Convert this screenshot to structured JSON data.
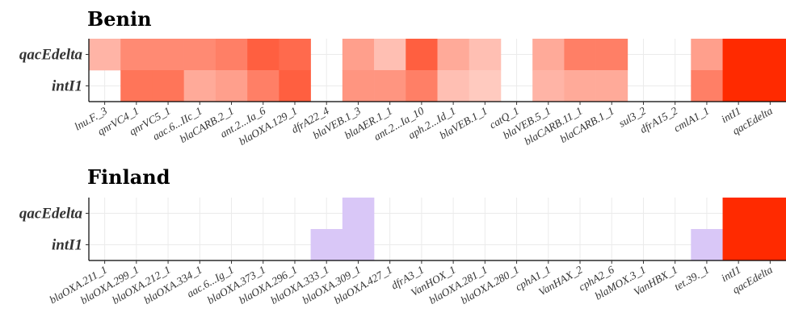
{
  "chart_data": [
    {
      "type": "heatmap",
      "title": "Benin",
      "rows": [
        "qacEdelta",
        "intI1"
      ],
      "columns": [
        "lnu.F._3",
        "qnrVC4_1",
        "qnrVC5_1",
        "aac.6...IIc_1",
        "blaCARB.2_1",
        "ant.2...Ia_6",
        "blaOXA.129_1",
        "dfrA22_4",
        "blaVEB.1_3",
        "blaAER.1_1",
        "ant.2...Ia_10",
        "aph.2...Id_1",
        "blaVEB.1_1",
        "catQ_1",
        "blaVEB.5_1",
        "blaCARB.11_1",
        "blaCARB.1_1",
        "sul3_2",
        "dfrA15_2",
        "cmlA1_1",
        "intI1",
        "qacEdelta"
      ],
      "values": [
        [
          0.35,
          0.55,
          0.55,
          0.55,
          0.6,
          0.75,
          0.7,
          null,
          0.45,
          0.3,
          0.75,
          0.4,
          0.3,
          null,
          0.4,
          0.6,
          0.6,
          null,
          null,
          0.45,
          1.0,
          1.0
        ],
        [
          null,
          0.65,
          0.65,
          0.4,
          0.45,
          0.6,
          0.75,
          null,
          0.5,
          0.5,
          0.6,
          0.3,
          0.25,
          null,
          0.35,
          0.4,
          0.4,
          null,
          null,
          0.6,
          1.0,
          1.0
        ]
      ],
      "color_low": "#ffffff",
      "color_high": "#ff2a00"
    },
    {
      "type": "heatmap",
      "title": "Finland",
      "rows": [
        "qacEdelta",
        "intI1"
      ],
      "columns": [
        "blaOXA.211_1",
        "blaOXA.299_1",
        "blaOXA.212_1",
        "blaOXA.334_1",
        "aac.6...Ig_1",
        "blaOXA.373_1",
        "blaOXA.296_1",
        "blaOXA.333_1",
        "blaOXA.309_1",
        "blaOXA.427_1",
        "dfrA3_1",
        "VanHOX_1",
        "blaOXA.281_1",
        "blaOXA.280_1",
        "cphA1_1",
        "VanHAX_2",
        "cphA2_6",
        "blaMOX.3_1",
        "VanHBX_1",
        "tet.39._1",
        "intI1",
        "qacEdelta"
      ],
      "values": [
        [
          null,
          null,
          null,
          null,
          null,
          null,
          null,
          null,
          "low",
          null,
          null,
          null,
          null,
          null,
          null,
          null,
          null,
          null,
          null,
          null,
          1.0,
          1.0
        ],
        [
          null,
          null,
          null,
          null,
          null,
          null,
          null,
          "low",
          "low",
          null,
          null,
          null,
          null,
          null,
          null,
          null,
          null,
          null,
          null,
          "low",
          1.0,
          1.0
        ]
      ],
      "color_low_cell": "#d9c7f7",
      "color_high": "#ff2a00"
    }
  ]
}
